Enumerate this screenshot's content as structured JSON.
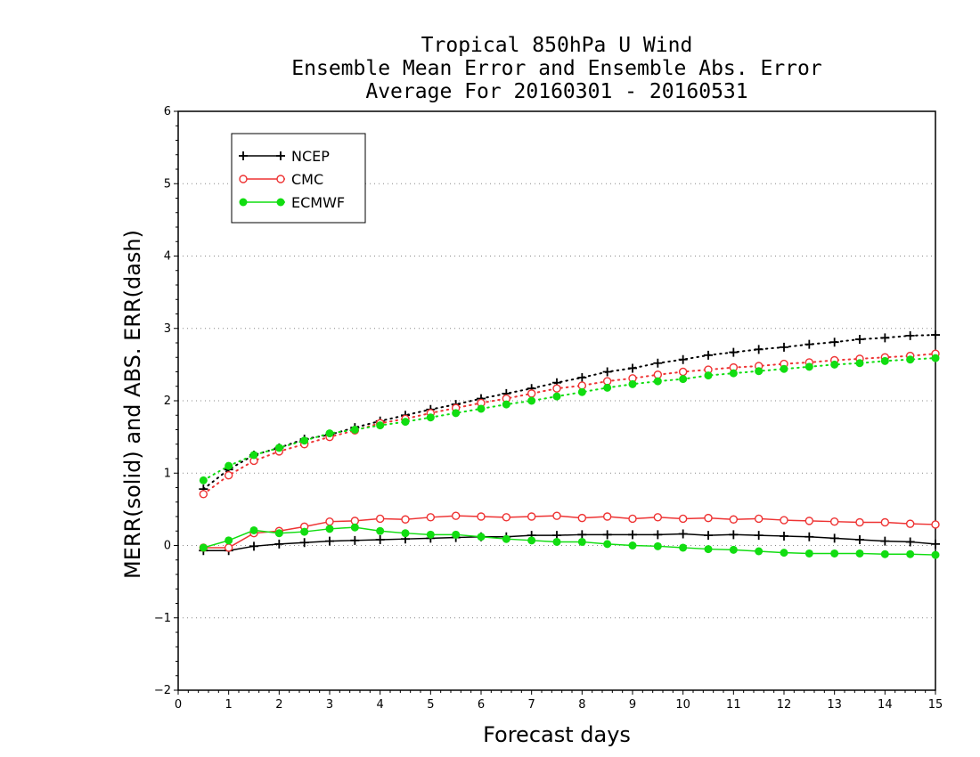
{
  "chart_data": {
    "type": "line",
    "title_lines": [
      "Tropical 850hPa U Wind",
      "Ensemble Mean Error and Ensemble Abs. Error",
      "Average For 20160301 - 20160531"
    ],
    "xlabel": "Forecast days",
    "ylabel": "MERR(solid) and ABS. ERR(dash)",
    "xlim": [
      0,
      15
    ],
    "ylim": [
      -2,
      6
    ],
    "xticks": [
      "0",
      "1",
      "2",
      "3",
      "4",
      "5",
      "6",
      "7",
      "8",
      "9",
      "10",
      "11",
      "12",
      "13",
      "14",
      "15"
    ],
    "yticks": [
      "−2",
      "−1",
      "0",
      "1",
      "2",
      "3",
      "4",
      "5",
      "6"
    ],
    "grid": "horizontal dotted",
    "legend_position": "top-left",
    "x": [
      0.5,
      1,
      1.5,
      2,
      2.5,
      3,
      3.5,
      4,
      4.5,
      5,
      5.5,
      6,
      6.5,
      7,
      7.5,
      8,
      8.5,
      9,
      9.5,
      10,
      10.5,
      11,
      11.5,
      12,
      12.5,
      13,
      13.5,
      14,
      14.5,
      15
    ],
    "series": [
      {
        "name": "NCEP",
        "color": "#000000",
        "marker": "plus",
        "merr": [
          -0.07,
          -0.07,
          -0.01,
          0.02,
          0.04,
          0.06,
          0.07,
          0.08,
          0.09,
          0.1,
          0.11,
          0.12,
          0.12,
          0.14,
          0.14,
          0.15,
          0.15,
          0.15,
          0.15,
          0.16,
          0.14,
          0.15,
          0.14,
          0.13,
          0.12,
          0.1,
          0.08,
          0.06,
          0.05,
          0.02
        ],
        "abs_err": [
          0.78,
          1.05,
          1.25,
          1.35,
          1.47,
          1.53,
          1.63,
          1.72,
          1.8,
          1.88,
          1.95,
          2.03,
          2.1,
          2.17,
          2.25,
          2.32,
          2.4,
          2.45,
          2.52,
          2.57,
          2.63,
          2.67,
          2.71,
          2.74,
          2.78,
          2.81,
          2.85,
          2.87,
          2.9,
          2.91
        ]
      },
      {
        "name": "CMC",
        "color": "#ee3333",
        "marker": "open-circle",
        "merr": [
          -0.03,
          -0.03,
          0.17,
          0.2,
          0.26,
          0.33,
          0.34,
          0.37,
          0.36,
          0.39,
          0.41,
          0.4,
          0.39,
          0.4,
          0.41,
          0.38,
          0.4,
          0.37,
          0.39,
          0.37,
          0.38,
          0.36,
          0.37,
          0.35,
          0.34,
          0.33,
          0.32,
          0.32,
          0.3,
          0.29
        ],
        "abs_err": [
          0.71,
          0.97,
          1.17,
          1.3,
          1.4,
          1.5,
          1.59,
          1.69,
          1.75,
          1.83,
          1.9,
          1.97,
          2.03,
          2.1,
          2.17,
          2.21,
          2.27,
          2.31,
          2.36,
          2.4,
          2.43,
          2.46,
          2.48,
          2.51,
          2.53,
          2.56,
          2.58,
          2.6,
          2.62,
          2.65
        ]
      },
      {
        "name": "ECMWF",
        "color": "#11dd11",
        "marker": "filled-circle",
        "merr": [
          -0.03,
          0.07,
          0.21,
          0.17,
          0.19,
          0.23,
          0.25,
          0.2,
          0.17,
          0.15,
          0.15,
          0.12,
          0.09,
          0.07,
          0.05,
          0.05,
          0.02,
          0.0,
          -0.01,
          -0.03,
          -0.05,
          -0.06,
          -0.08,
          -0.1,
          -0.11,
          -0.11,
          -0.11,
          -0.12,
          -0.12,
          -0.13
        ],
        "abs_err": [
          0.9,
          1.1,
          1.25,
          1.35,
          1.45,
          1.55,
          1.6,
          1.66,
          1.71,
          1.77,
          1.83,
          1.89,
          1.95,
          2.0,
          2.06,
          2.12,
          2.18,
          2.23,
          2.27,
          2.3,
          2.35,
          2.38,
          2.41,
          2.44,
          2.47,
          2.5,
          2.52,
          2.55,
          2.57,
          2.59
        ]
      }
    ]
  }
}
